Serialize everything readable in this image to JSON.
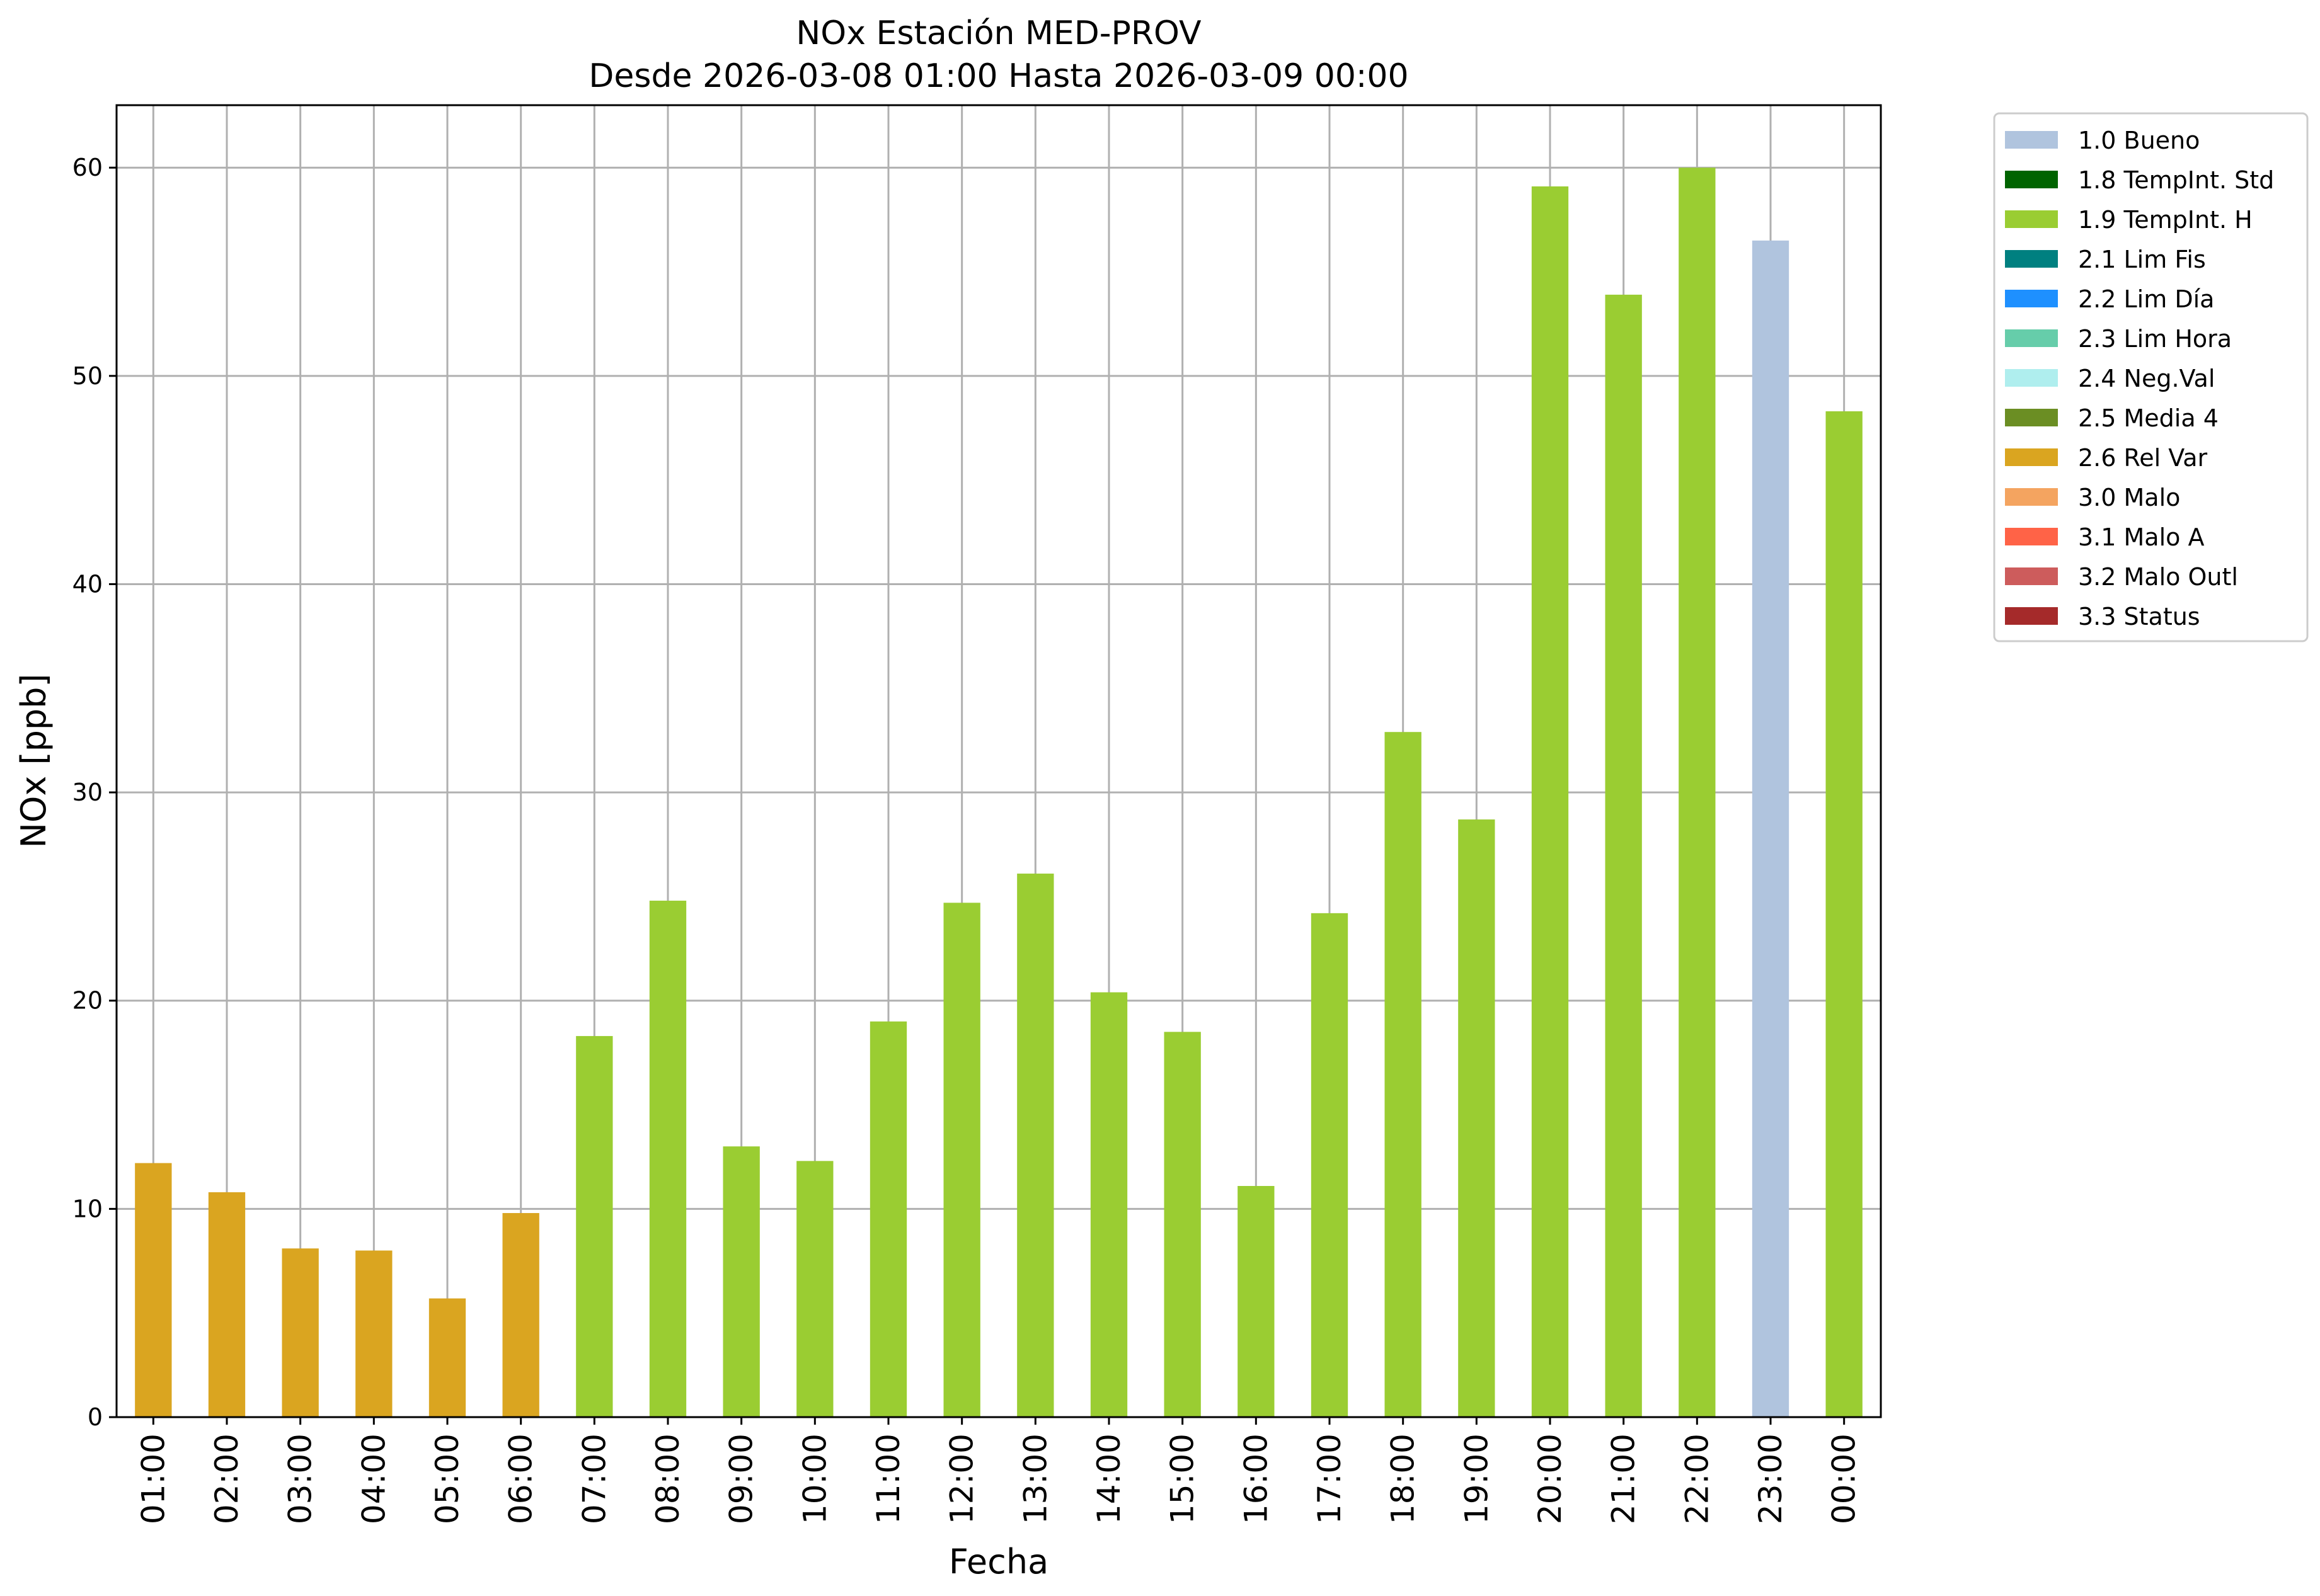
{
  "chart_data": {
    "type": "bar",
    "title": "NOx Estación MED-PROV",
    "subtitle": "Desde 2026-03-08 01:00 Hasta 2026-03-09 00:00",
    "xlabel": "Fecha",
    "ylabel": "NOx [ppb]",
    "ylim": [
      0,
      63
    ],
    "yticks": [
      0,
      10,
      20,
      30,
      40,
      50,
      60
    ],
    "grid": true,
    "legend_position": "outside-right-top",
    "categories": [
      "01:00",
      "02:00",
      "03:00",
      "04:00",
      "05:00",
      "06:00",
      "07:00",
      "08:00",
      "09:00",
      "10:00",
      "11:00",
      "12:00",
      "13:00",
      "14:00",
      "15:00",
      "16:00",
      "17:00",
      "18:00",
      "19:00",
      "20:00",
      "21:00",
      "22:00",
      "23:00",
      "00:00"
    ],
    "values": [
      12.2,
      10.8,
      8.1,
      8.0,
      5.7,
      9.8,
      18.3,
      24.8,
      13.0,
      12.3,
      19.0,
      24.7,
      26.1,
      20.4,
      18.5,
      11.1,
      24.2,
      32.9,
      28.7,
      59.1,
      53.9,
      60.0,
      56.5,
      48.3
    ],
    "flags": [
      "2.6",
      "2.6",
      "2.6",
      "2.6",
      "2.6",
      "2.6",
      "1.9",
      "1.9",
      "1.9",
      "1.9",
      "1.9",
      "1.9",
      "1.9",
      "1.9",
      "1.9",
      "1.9",
      "1.9",
      "1.9",
      "1.9",
      "1.9",
      "1.9",
      "1.9",
      "1.0",
      "1.9"
    ],
    "legend": [
      {
        "code": "1.0",
        "label": "1.0 Bueno",
        "color": "#b0c4de"
      },
      {
        "code": "1.8",
        "label": "1.8 TempInt. Std",
        "color": "#006400"
      },
      {
        "code": "1.9",
        "label": "1.9 TempInt. H",
        "color": "#9acd32"
      },
      {
        "code": "2.1",
        "label": "2.1 Lim Fis",
        "color": "#008080"
      },
      {
        "code": "2.2",
        "label": "2.2 Lim Día",
        "color": "#1e90ff"
      },
      {
        "code": "2.3",
        "label": "2.3 Lim Hora",
        "color": "#66cdaa"
      },
      {
        "code": "2.4",
        "label": "2.4 Neg.Val",
        "color": "#afeeee"
      },
      {
        "code": "2.5",
        "label": "2.5 Media 4",
        "color": "#6b8e23"
      },
      {
        "code": "2.6",
        "label": "2.6 Rel Var",
        "color": "#daa520"
      },
      {
        "code": "3.0",
        "label": "3.0 Malo",
        "color": "#f4a460"
      },
      {
        "code": "3.1",
        "label": "3.1 Malo A",
        "color": "#ff6347"
      },
      {
        "code": "3.2",
        "label": "3.2 Malo Outl",
        "color": "#cd5c5c"
      },
      {
        "code": "3.3",
        "label": "3.3 Status",
        "color": "#a52a2a"
      }
    ]
  }
}
